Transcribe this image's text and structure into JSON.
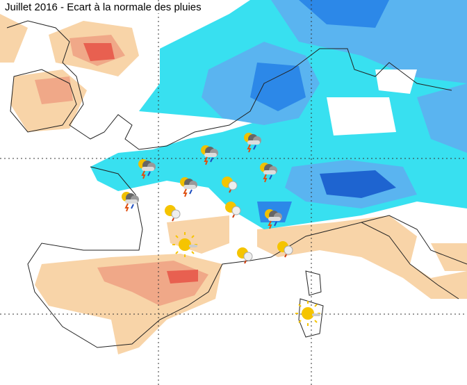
{
  "header": {
    "title": "Juillet 2016 - Ecart à la normale des pluies"
  }
}
